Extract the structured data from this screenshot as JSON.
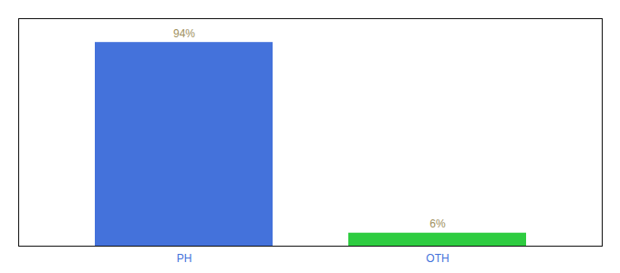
{
  "chart_data": {
    "type": "bar",
    "categories": [
      "PH",
      "OTH"
    ],
    "values": [
      94,
      6
    ],
    "value_labels": [
      "94%",
      "6%"
    ],
    "colors": [
      "#4472db",
      "#2ecc40"
    ],
    "ylim": [
      0,
      105
    ],
    "data_labels": true,
    "tick_labels": "x",
    "grid": false
  }
}
